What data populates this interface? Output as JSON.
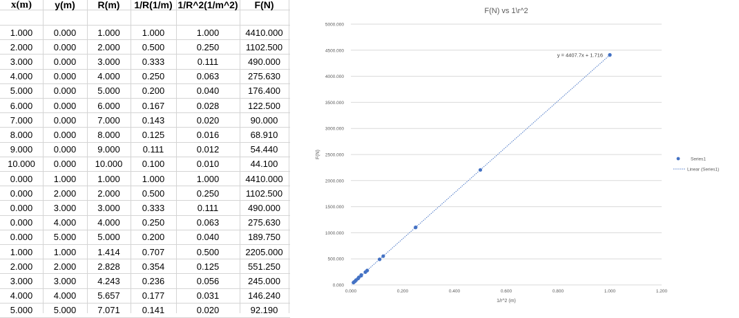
{
  "sheet": {
    "headers": [
      "x(m)",
      "y(m)",
      "R(m)",
      "1/R(1/m)",
      "1/R^2(1/m^2)",
      "F(N)"
    ],
    "rows": [
      [
        "1.000",
        "0.000",
        "1.000",
        "1.000",
        "1.000",
        "4410.000"
      ],
      [
        "2.000",
        "0.000",
        "2.000",
        "0.500",
        "0.250",
        "1102.500"
      ],
      [
        "3.000",
        "0.000",
        "3.000",
        "0.333",
        "0.111",
        "490.000"
      ],
      [
        "4.000",
        "0.000",
        "4.000",
        "0.250",
        "0.063",
        "275.630"
      ],
      [
        "5.000",
        "0.000",
        "5.000",
        "0.200",
        "0.040",
        "176.400"
      ],
      [
        "6.000",
        "0.000",
        "6.000",
        "0.167",
        "0.028",
        "122.500"
      ],
      [
        "7.000",
        "0.000",
        "7.000",
        "0.143",
        "0.020",
        "90.000"
      ],
      [
        "8.000",
        "0.000",
        "8.000",
        "0.125",
        "0.016",
        "68.910"
      ],
      [
        "9.000",
        "0.000",
        "9.000",
        "0.111",
        "0.012",
        "54.440"
      ],
      [
        "10.000",
        "0.000",
        "10.000",
        "0.100",
        "0.010",
        "44.100"
      ],
      [
        "0.000",
        "1.000",
        "1.000",
        "1.000",
        "1.000",
        "4410.000"
      ],
      [
        "0.000",
        "2.000",
        "2.000",
        "0.500",
        "0.250",
        "1102.500"
      ],
      [
        "0.000",
        "3.000",
        "3.000",
        "0.333",
        "0.111",
        "490.000"
      ],
      [
        "0.000",
        "4.000",
        "4.000",
        "0.250",
        "0.063",
        "275.630"
      ],
      [
        "0.000",
        "5.000",
        "5.000",
        "0.200",
        "0.040",
        "189.750"
      ],
      [
        "1.000",
        "1.000",
        "1.414",
        "0.707",
        "0.500",
        "2205.000"
      ],
      [
        "2.000",
        "2.000",
        "2.828",
        "0.354",
        "0.125",
        "551.250"
      ],
      [
        "3.000",
        "3.000",
        "4.243",
        "0.236",
        "0.056",
        "245.000"
      ],
      [
        "4.000",
        "4.000",
        "5.657",
        "0.177",
        "0.031",
        "146.240"
      ],
      [
        "5.000",
        "5.000",
        "7.071",
        "0.141",
        "0.020",
        "92.190"
      ]
    ]
  },
  "chart_data": {
    "type": "scatter",
    "title": "F(N) vs 1\\r^2",
    "xlabel": "1/r^2 (m)",
    "ylabel": "F(N)",
    "xlim": [
      0,
      1.2
    ],
    "ylim": [
      0,
      5000
    ],
    "xticks": [
      "0.000",
      "0.200",
      "0.400",
      "0.600",
      "0.800",
      "1.000",
      "1.200"
    ],
    "yticks": [
      "0.000",
      "500.000",
      "1000.000",
      "1500.000",
      "2000.000",
      "2500.000",
      "3000.000",
      "3500.000",
      "4000.000",
      "4500.000",
      "5000.000"
    ],
    "grid": "horizontal",
    "legend_position": "right",
    "series": [
      {
        "name": "Series1",
        "color": "#4472c4",
        "points": [
          [
            1.0,
            4410
          ],
          [
            0.25,
            1102.5
          ],
          [
            0.111,
            490
          ],
          [
            0.063,
            275.63
          ],
          [
            0.04,
            176.4
          ],
          [
            0.028,
            122.5
          ],
          [
            0.02,
            90
          ],
          [
            0.016,
            68.91
          ],
          [
            0.012,
            54.44
          ],
          [
            0.01,
            44.1
          ],
          [
            1.0,
            4410
          ],
          [
            0.25,
            1102.5
          ],
          [
            0.111,
            490
          ],
          [
            0.063,
            275.63
          ],
          [
            0.04,
            189.75
          ],
          [
            0.5,
            2205
          ],
          [
            0.125,
            551.25
          ],
          [
            0.056,
            245
          ],
          [
            0.031,
            146.24
          ],
          [
            0.02,
            92.19
          ]
        ]
      }
    ],
    "trendline": {
      "name": "Linear (Series1)",
      "color": "#4472c4",
      "slope": 4407.7,
      "intercept": 1.716,
      "equation_label": "y = 4407.7x + 1.716"
    }
  }
}
